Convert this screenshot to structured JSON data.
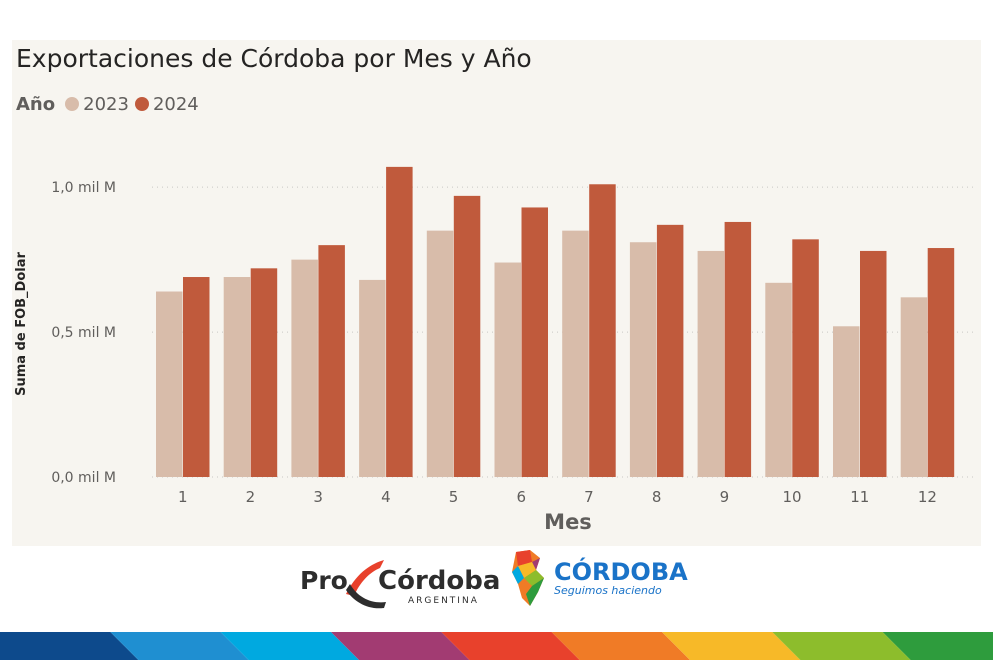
{
  "chart_data": {
    "type": "bar",
    "title": "Exportaciones de Córdoba por Mes y Año",
    "legend": {
      "title": "Año",
      "placement": "top-left"
    },
    "xlabel": "Mes",
    "ylabel": "Suma de FOB_Dolar",
    "categories": [
      "1",
      "2",
      "3",
      "4",
      "5",
      "6",
      "7",
      "8",
      "9",
      "10",
      "11",
      "12"
    ],
    "yticks": [
      {
        "value": 0,
        "label": "0,0 mil M"
      },
      {
        "value": 0.5,
        "label": "0,5 mil M"
      },
      {
        "value": 1.0,
        "label": "1,0 mil M"
      }
    ],
    "ylim": [
      0,
      1.18
    ],
    "grid": true,
    "series": [
      {
        "name": "2023",
        "color": "#d8bcaa",
        "values": [
          0.64,
          0.69,
          0.75,
          0.68,
          0.85,
          0.74,
          0.85,
          0.81,
          0.78,
          0.67,
          0.52,
          0.62
        ]
      },
      {
        "name": "2024",
        "color": "#c05a3c",
        "values": [
          0.69,
          0.72,
          0.8,
          1.07,
          0.97,
          0.93,
          1.01,
          0.87,
          0.88,
          0.82,
          0.78,
          0.79
        ]
      }
    ]
  },
  "logos": {
    "procordoba": {
      "pro": "Pro",
      "cordoba": "Córdoba",
      "country": "ARGENTINA"
    },
    "government": {
      "title": "CÓRDOBA",
      "tagline": "Seguimos haciendo"
    }
  },
  "band_colors": [
    "#0d4a8c",
    "#1f8fd1",
    "#00a9e0",
    "#a23b72",
    "#e8412c",
    "#f07b26",
    "#f7b928",
    "#8dbd2c",
    "#2e9c3d"
  ]
}
